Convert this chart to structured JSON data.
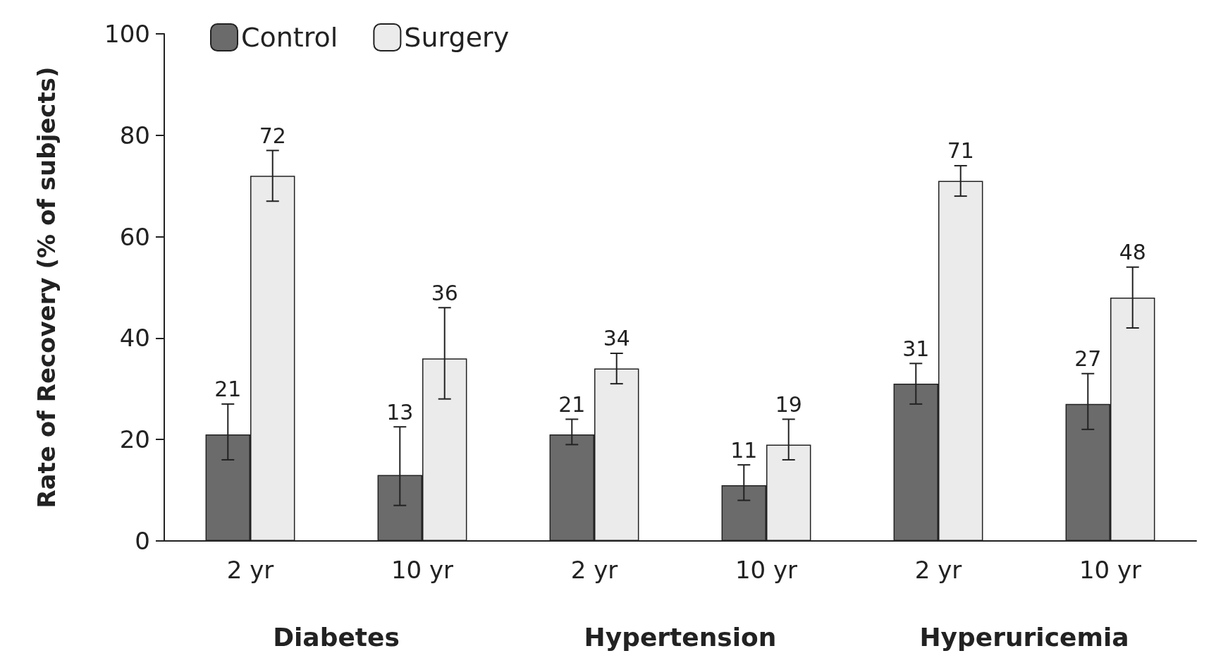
{
  "chart_data": {
    "type": "bar",
    "ylabel": "Rate of Recovery (% of subjects)",
    "categories": [
      "2 yr",
      "10 yr",
      "2 yr",
      "10 yr",
      "2 yr",
      "10 yr"
    ],
    "series": [
      {
        "name": "Control",
        "color": "#6b6b6b",
        "values": [
          21,
          13,
          21,
          11,
          31,
          27
        ],
        "errors": [
          [
            16,
            27
          ],
          [
            7,
            22.5
          ],
          [
            19,
            24
          ],
          [
            8,
            15
          ],
          [
            27,
            35
          ],
          [
            22,
            33
          ]
        ]
      },
      {
        "name": "Surgery",
        "color": "#ebebeb",
        "values": [
          72,
          36,
          34,
          19,
          71,
          48
        ],
        "errors": [
          [
            67,
            77
          ],
          [
            28,
            46
          ],
          [
            31,
            37
          ],
          [
            16,
            24
          ],
          [
            68,
            74
          ],
          [
            42,
            54
          ]
        ]
      }
    ],
    "annotations": [
      "Diabetes",
      "Hypertension",
      "Hyperuricemia"
    ],
    "ylim": [
      0,
      100
    ],
    "yticks": [
      0,
      20,
      40,
      60,
      80,
      100
    ],
    "grid": false,
    "legend": "top left",
    "data_labels": true
  }
}
